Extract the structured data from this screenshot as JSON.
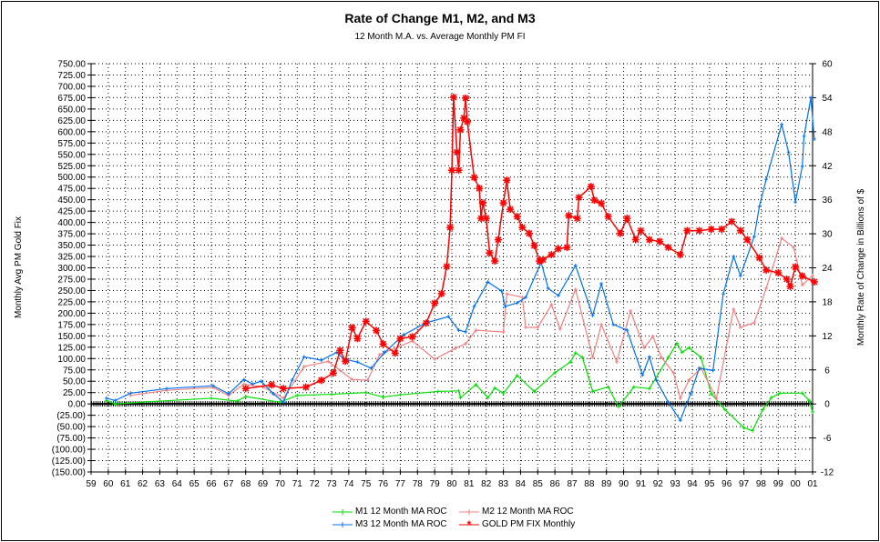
{
  "chart_data": {
    "type": "line",
    "title": "Rate of Change M1, M2, and M3",
    "subtitle": "12 Month M.A. vs. Average Monthly PM FI",
    "ylabel_left": "Monthly Avg PM Gold Fix",
    "ylabel_right": "Monthly Rate of Change in Billions of $",
    "xlim": [
      1959,
      2001
    ],
    "ylim_left": [
      -150,
      750
    ],
    "ylim_right": [
      -12,
      60
    ],
    "grid": true,
    "legend_position": "bottom",
    "x_tick_labels": [
      "59",
      "60",
      "61",
      "62",
      "63",
      "64",
      "65",
      "66",
      "67",
      "68",
      "69",
      "70",
      "71",
      "72",
      "73",
      "74",
      "75",
      "76",
      "77",
      "78",
      "79",
      "80",
      "81",
      "82",
      "83",
      "84",
      "85",
      "86",
      "87",
      "88",
      "89",
      "90",
      "91",
      "92",
      "93",
      "94",
      "95",
      "96",
      "97",
      "98",
      "99",
      "00",
      "01"
    ],
    "y_left_tick_labels": [
      "750.00",
      "725.00",
      "700.00",
      "675.00",
      "650.00",
      "625.00",
      "600.00",
      "575.00",
      "550.00",
      "525.00",
      "500.00",
      "475.00",
      "450.00",
      "425.00",
      "400.00",
      "375.00",
      "350.00",
      "325.00",
      "300.00",
      "275.00",
      "250.00",
      "225.00",
      "200.00",
      "175.00",
      "150.00",
      "125.00",
      "100.00",
      "75.00",
      "50.00",
      "25.00",
      "0.00",
      "(25.00)",
      "(50.00)",
      "(75.00)",
      "(100.00)",
      "(125.00)",
      "(150.00)"
    ],
    "y_right_tick_labels": [
      "60",
      "54",
      "48",
      "42",
      "36",
      "30",
      "24",
      "18",
      "12",
      "6",
      "0",
      "-6",
      "-12"
    ],
    "baseline": {
      "value": 0,
      "color": "#000000"
    },
    "series": [
      {
        "name": "M1 12 Month MA ROC",
        "axis": "right",
        "color": "#00e000",
        "marker": "plus",
        "points": [
          [
            1959.9,
            0.6
          ],
          [
            1960.4,
            0
          ],
          [
            1963,
            0.5
          ],
          [
            1966,
            1
          ],
          [
            1967.5,
            0.5
          ],
          [
            1968,
            1.3
          ],
          [
            1970,
            0.3
          ],
          [
            1971,
            1.5
          ],
          [
            1973,
            1.7
          ],
          [
            1975,
            2
          ],
          [
            1976,
            1.2
          ],
          [
            1977,
            1.6
          ],
          [
            1979.2,
            2.2
          ],
          [
            1980.4,
            2.3
          ],
          [
            1980.5,
            1.1
          ],
          [
            1981.4,
            3.4
          ],
          [
            1982.1,
            1.1
          ],
          [
            1982.5,
            2.8
          ],
          [
            1983,
            1.9
          ],
          [
            1983.8,
            5
          ],
          [
            1984.8,
            2.2
          ],
          [
            1986,
            5.5
          ],
          [
            1986.9,
            7.4
          ],
          [
            1987.2,
            9
          ],
          [
            1987.6,
            8.2
          ],
          [
            1988.2,
            2.2
          ],
          [
            1989.1,
            3
          ],
          [
            1989.7,
            -0.5
          ],
          [
            1990.6,
            3
          ],
          [
            1991.5,
            2.7
          ],
          [
            1992.6,
            8.2
          ],
          [
            1993.1,
            10.7
          ],
          [
            1993.4,
            9.1
          ],
          [
            1993.8,
            9.9
          ],
          [
            1994.5,
            8.2
          ],
          [
            1995.1,
            1.8
          ],
          [
            1995.9,
            -1
          ],
          [
            1997,
            -4.2
          ],
          [
            1997.5,
            -4.7
          ],
          [
            1998.1,
            -1
          ],
          [
            1998.6,
            1.1
          ],
          [
            1999.1,
            1.9
          ],
          [
            2000.4,
            1.9
          ],
          [
            2000.8,
            0.6
          ],
          [
            2001,
            -1.4
          ]
        ]
      },
      {
        "name": "M2 12 Month MA ROC",
        "axis": "right",
        "color": "#f08080",
        "marker": "plus",
        "points": [
          [
            1961.3,
            1.5
          ],
          [
            1963.4,
            2.4
          ],
          [
            1966.1,
            2.9
          ],
          [
            1967,
            1.5
          ],
          [
            1967.9,
            3.5
          ],
          [
            1969,
            3
          ],
          [
            1970.2,
            1
          ],
          [
            1971.4,
            6.6
          ],
          [
            1972.8,
            7.5
          ],
          [
            1973.5,
            5.9
          ],
          [
            1974.2,
            4.3
          ],
          [
            1975.1,
            4.2
          ],
          [
            1975.8,
            8.7
          ],
          [
            1977.7,
            11.1
          ],
          [
            1979,
            7.9
          ],
          [
            1980.2,
            9.8
          ],
          [
            1980.8,
            10.6
          ],
          [
            1981.4,
            13
          ],
          [
            1983,
            12.7
          ],
          [
            1983.2,
            19.4
          ],
          [
            1984.1,
            18.8
          ],
          [
            1984.3,
            13.5
          ],
          [
            1985,
            13.5
          ],
          [
            1985.8,
            17.5
          ],
          [
            1986.3,
            13.2
          ],
          [
            1987.2,
            20.2
          ],
          [
            1988.2,
            8.2
          ],
          [
            1988.7,
            14
          ],
          [
            1989.6,
            7.4
          ],
          [
            1990.4,
            16.4
          ],
          [
            1991.2,
            9.9
          ],
          [
            1991.7,
            11.9
          ],
          [
            1992.2,
            8.2
          ],
          [
            1992.9,
            5.5
          ],
          [
            1993.3,
            1
          ],
          [
            1993.8,
            4.2
          ],
          [
            1994.5,
            6.3
          ],
          [
            1995.4,
            1
          ],
          [
            1996.4,
            16.7
          ],
          [
            1996.8,
            13.5
          ],
          [
            1997.6,
            14.3
          ],
          [
            1998.3,
            20.4
          ],
          [
            1999.2,
            29.2
          ],
          [
            1999.9,
            27.6
          ],
          [
            2000.4,
            21
          ],
          [
            2001,
            22.6
          ]
        ]
      },
      {
        "name": "M3 12 Month MA ROC",
        "axis": "right",
        "color": "#0070f0",
        "marker": "plus",
        "points": [
          [
            1959.9,
            1
          ],
          [
            1960.4,
            0.6
          ],
          [
            1961.3,
            1.9
          ],
          [
            1963.4,
            2.7
          ],
          [
            1966.1,
            3.2
          ],
          [
            1967,
            1.8
          ],
          [
            1967.9,
            4.3
          ],
          [
            1968.4,
            3.5
          ],
          [
            1968.9,
            4
          ],
          [
            1969.6,
            1.8
          ],
          [
            1970.2,
            0.3
          ],
          [
            1970.7,
            4.2
          ],
          [
            1971.4,
            8.3
          ],
          [
            1972.4,
            7.7
          ],
          [
            1973.3,
            9.1
          ],
          [
            1973.7,
            7.9
          ],
          [
            1974.5,
            7.4
          ],
          [
            1975.3,
            6.3
          ],
          [
            1976.1,
            9.1
          ],
          [
            1977.2,
            12.2
          ],
          [
            1978.5,
            14.3
          ],
          [
            1979.8,
            15.4
          ],
          [
            1980.4,
            13
          ],
          [
            1980.8,
            12.7
          ],
          [
            1981.3,
            17.2
          ],
          [
            1982.1,
            21.5
          ],
          [
            1982.9,
            19.9
          ],
          [
            1983.1,
            17.2
          ],
          [
            1983.8,
            17.8
          ],
          [
            1984.3,
            18.8
          ],
          [
            1985.2,
            25
          ],
          [
            1985.6,
            20.4
          ],
          [
            1986.2,
            19.1
          ],
          [
            1987.2,
            24.4
          ],
          [
            1988.2,
            15.6
          ],
          [
            1988.7,
            21.2
          ],
          [
            1989.4,
            14
          ],
          [
            1990.2,
            13
          ],
          [
            1991.1,
            5.1
          ],
          [
            1991.5,
            8.3
          ],
          [
            1991.9,
            4.2
          ],
          [
            1992.6,
            0.3
          ],
          [
            1993.3,
            -2.9
          ],
          [
            1993.9,
            1.8
          ],
          [
            1994.4,
            6.3
          ],
          [
            1995.2,
            5.9
          ],
          [
            1995.8,
            19.4
          ],
          [
            1996.4,
            26
          ],
          [
            1996.8,
            22.6
          ],
          [
            1997.6,
            29.5
          ],
          [
            1997.9,
            34.8
          ],
          [
            1998.3,
            39.6
          ],
          [
            1999.2,
            49.3
          ],
          [
            1999.6,
            44.4
          ],
          [
            2000,
            35.6
          ],
          [
            2000.4,
            41.9
          ],
          [
            2000.5,
            47.2
          ],
          [
            2000.9,
            54
          ],
          [
            2001.1,
            46.7
          ]
        ]
      },
      {
        "name": "GOLD PM FIX Monthly",
        "axis": "left",
        "color": "#ff0000",
        "marker": "star",
        "points": [
          [
            1968,
            34
          ],
          [
            1969.5,
            42
          ],
          [
            1970.2,
            34
          ],
          [
            1971.5,
            37
          ],
          [
            1972.4,
            52
          ],
          [
            1973.1,
            68
          ],
          [
            1973.5,
            118
          ],
          [
            1973.8,
            94
          ],
          [
            1974.2,
            168
          ],
          [
            1974.5,
            144
          ],
          [
            1975,
            182
          ],
          [
            1975.6,
            162
          ],
          [
            1976,
            132
          ],
          [
            1976.7,
            112
          ],
          [
            1977,
            144
          ],
          [
            1977.7,
            148
          ],
          [
            1978.5,
            178
          ],
          [
            1979,
            222
          ],
          [
            1979.4,
            243
          ],
          [
            1979.7,
            303
          ],
          [
            1979.9,
            389
          ],
          [
            1980,
            515
          ],
          [
            1980.1,
            676
          ],
          [
            1980.3,
            555
          ],
          [
            1980.4,
            515
          ],
          [
            1980.5,
            604
          ],
          [
            1980.7,
            630
          ],
          [
            1980.8,
            674
          ],
          [
            1980.9,
            622
          ],
          [
            1981.3,
            499
          ],
          [
            1981.6,
            475
          ],
          [
            1981.7,
            409
          ],
          [
            1981.8,
            443
          ],
          [
            1982,
            409
          ],
          [
            1982.2,
            333
          ],
          [
            1982.5,
            315
          ],
          [
            1982.7,
            362
          ],
          [
            1983,
            443
          ],
          [
            1983.2,
            493
          ],
          [
            1983.4,
            429
          ],
          [
            1983.8,
            413
          ],
          [
            1984.1,
            389
          ],
          [
            1984.5,
            376
          ],
          [
            1984.8,
            349
          ],
          [
            1985.1,
            315
          ],
          [
            1985.3,
            318
          ],
          [
            1985.8,
            329
          ],
          [
            1986.2,
            342
          ],
          [
            1986.7,
            345
          ],
          [
            1986.8,
            415
          ],
          [
            1987.3,
            409
          ],
          [
            1987.4,
            455
          ],
          [
            1988.1,
            479
          ],
          [
            1988.3,
            449
          ],
          [
            1988.7,
            442
          ],
          [
            1989.1,
            413
          ],
          [
            1989.8,
            376
          ],
          [
            1990.2,
            409
          ],
          [
            1990.7,
            362
          ],
          [
            1991,
            382
          ],
          [
            1991.5,
            362
          ],
          [
            1992.1,
            358
          ],
          [
            1992.6,
            345
          ],
          [
            1993.3,
            329
          ],
          [
            1993.7,
            382
          ],
          [
            1994.4,
            382
          ],
          [
            1995.1,
            385
          ],
          [
            1995.7,
            385
          ],
          [
            1996.3,
            402
          ],
          [
            1996.8,
            382
          ],
          [
            1997.2,
            362
          ],
          [
            1997.9,
            322
          ],
          [
            1998.3,
            295
          ],
          [
            1999,
            289
          ],
          [
            1999.5,
            275
          ],
          [
            1999.7,
            259
          ],
          [
            2000,
            302
          ],
          [
            2000.4,
            282
          ],
          [
            2001.1,
            269
          ]
        ]
      }
    ]
  }
}
